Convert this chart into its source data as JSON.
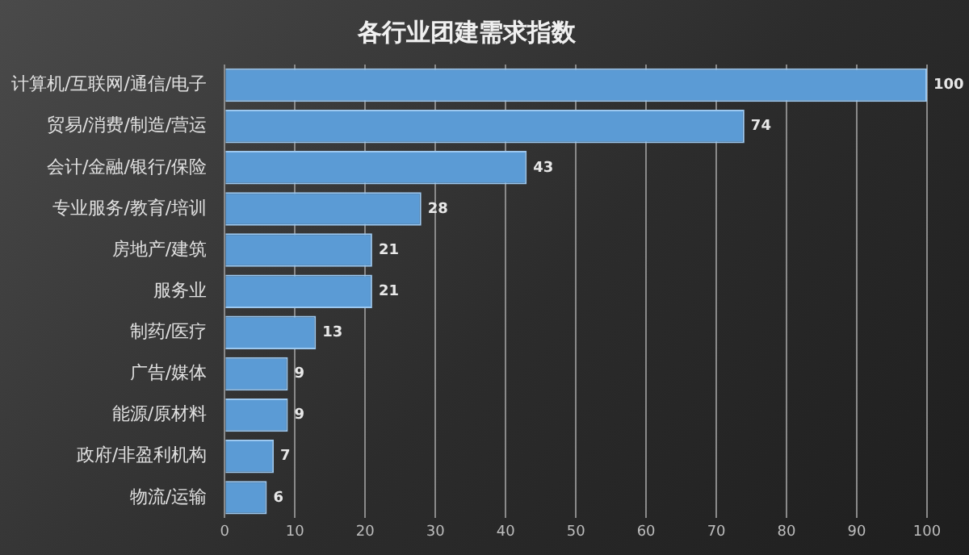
{
  "chart_data": {
    "type": "bar",
    "orientation": "horizontal",
    "title": "各行业团建需求指数",
    "categories": [
      "计算机/互联网/通信/电子",
      "贸易/消费/制造/营运",
      "会计/金融/银行/保险",
      "专业服务/教育/培训",
      "房地产/建筑",
      "服务业",
      "制药/医疗",
      "广告/媒体",
      "能源/原材料",
      "政府/非盈利机构",
      "物流/运输"
    ],
    "values": [
      100,
      74,
      43,
      28,
      21,
      21,
      13,
      9,
      9,
      7,
      6
    ],
    "color": "#5b9bd5",
    "xlim": [
      0,
      100
    ],
    "xticks": [
      0,
      10,
      20,
      30,
      40,
      50,
      60,
      70,
      80,
      90,
      100
    ],
    "grid": "x",
    "data_labels": true
  }
}
